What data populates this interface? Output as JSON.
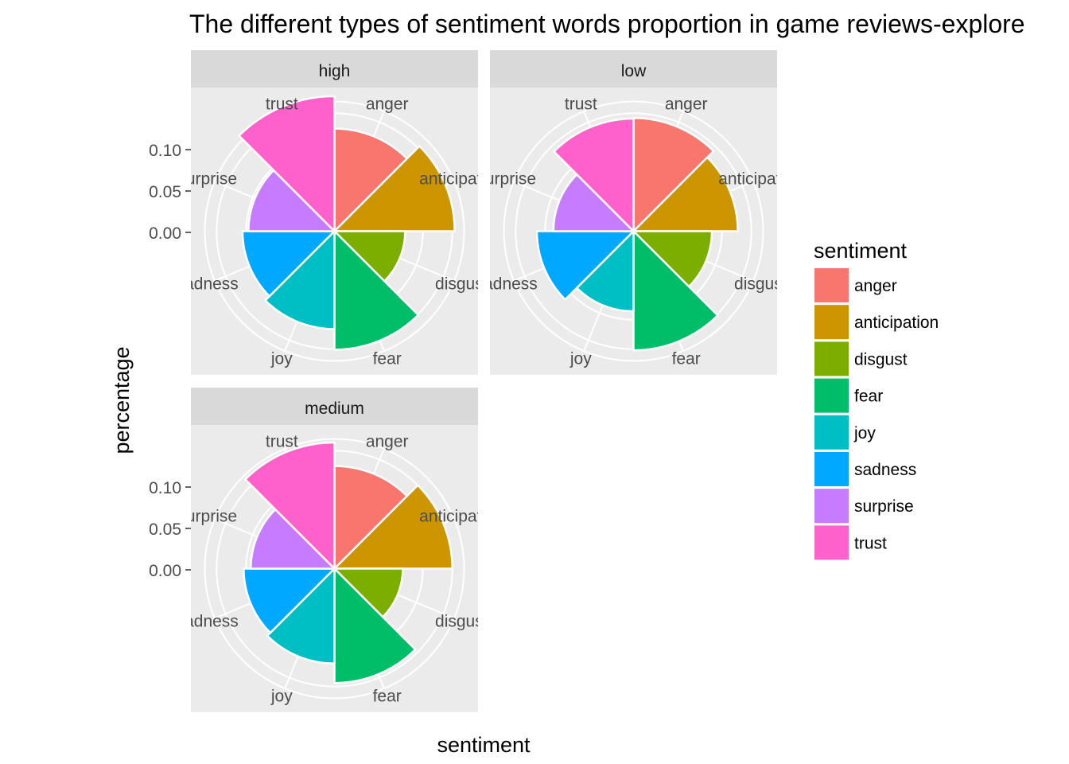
{
  "chart_data": {
    "type": "bar",
    "coord": "polar",
    "title": "The different types of sentiment words proportion in game reviews-explore",
    "xlabel": "sentiment",
    "ylabel": "percentage",
    "y_ticks": [
      "0.10",
      "0.05",
      "0.00"
    ],
    "y_tick_values": [
      0.1,
      0.05,
      0.0
    ],
    "ylim": [
      -0.1,
      0.12
    ],
    "grid": true,
    "legend_title": "sentiment",
    "legend_position": "right",
    "categories": [
      "anger",
      "anticipation",
      "disgust",
      "fear",
      "joy",
      "sadness",
      "surprise",
      "trust"
    ],
    "colors": [
      "#F8766D",
      "#CD9600",
      "#7CAE00",
      "#00BE67",
      "#00BFC4",
      "#00A9FF",
      "#C77CFF",
      "#FF61CC"
    ],
    "panels": [
      {
        "name": "high",
        "values": [
          0.074,
          0.104,
          0.02,
          0.101,
          0.066,
          0.056,
          0.046,
          0.129
        ]
      },
      {
        "name": "low",
        "values": [
          0.092,
          0.077,
          0.033,
          0.102,
          0.036,
          0.064,
          0.036,
          0.091
        ]
      },
      {
        "name": "medium",
        "values": [
          0.074,
          0.1,
          0.016,
          0.094,
          0.061,
          0.054,
          0.042,
          0.114
        ]
      }
    ]
  }
}
